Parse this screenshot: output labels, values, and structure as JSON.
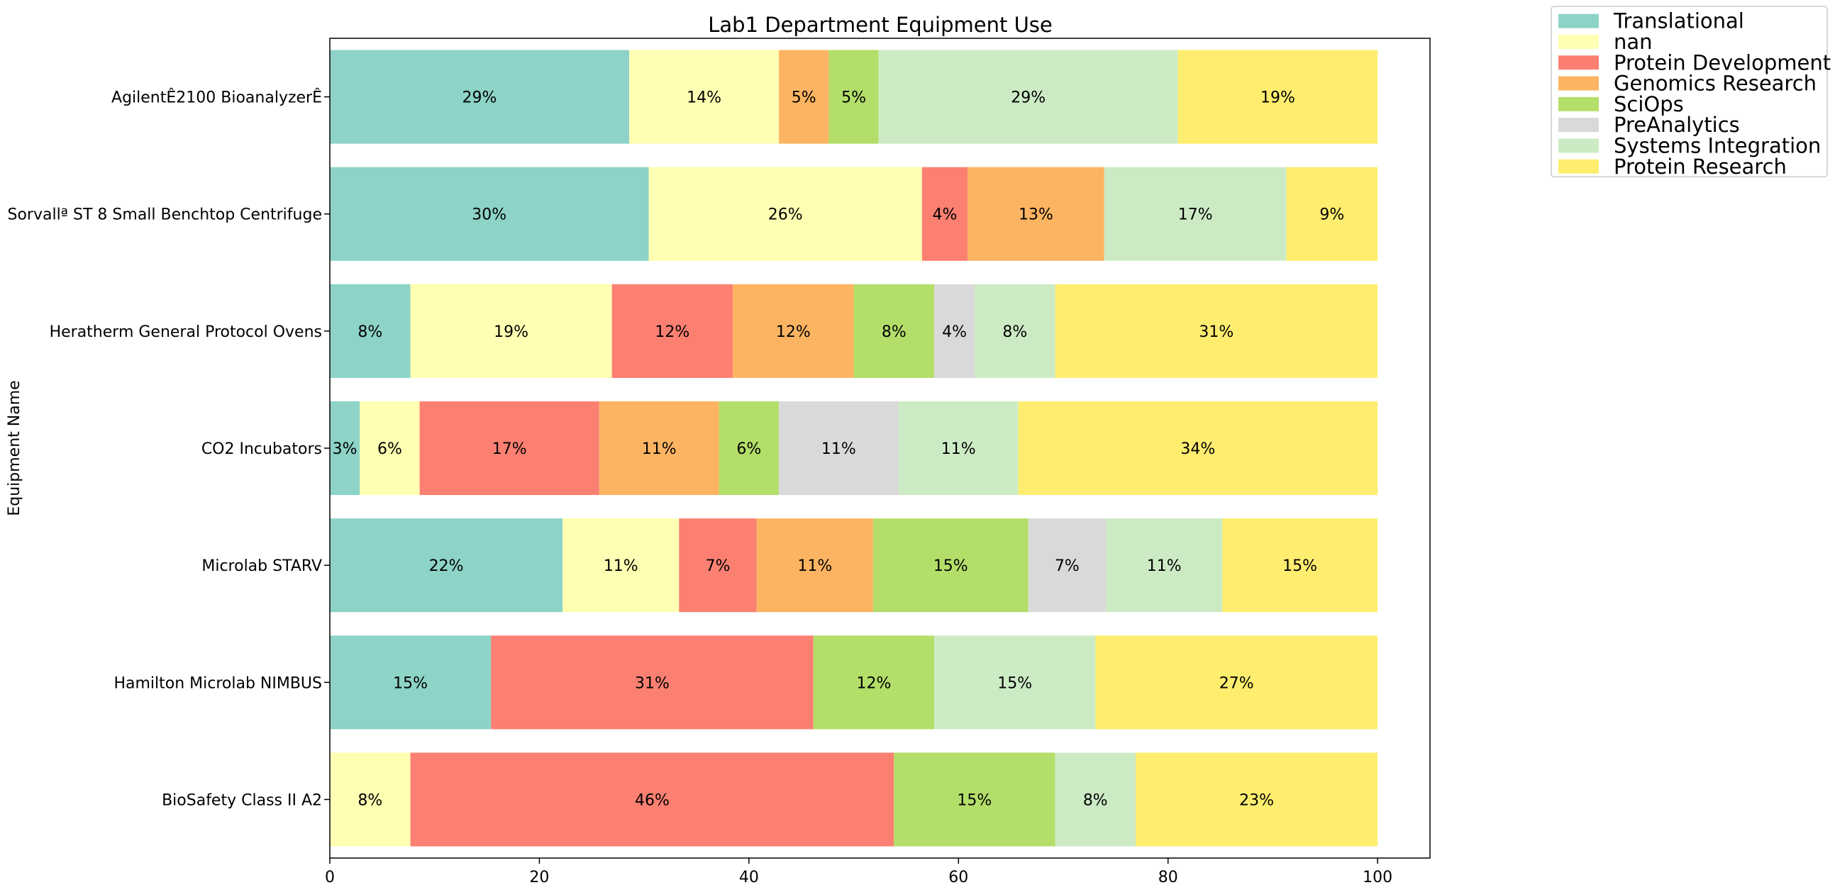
{
  "chart_data": {
    "type": "bar",
    "orientation": "horizontal",
    "stacked": true,
    "title": "Lab1 Department Equipment Use",
    "xlabel": "",
    "ylabel": "Equipment Name",
    "xlim": [
      0,
      105
    ],
    "xticks": [
      0,
      20,
      40,
      60,
      80,
      100
    ],
    "grid": false,
    "legend_position": "outside-top-right",
    "categories": [
      "AgilentÊ2100 BioanalyzerÊ",
      "Sorvallª ST 8 Small Benchtop Centrifuge",
      "Heratherm General Protocol Ovens",
      "CO2 Incubators",
      "Microlab STARV",
      "Hamilton Microlab NIMBUS",
      "BioSafety Class II A2"
    ],
    "series": [
      {
        "name": "Translational",
        "color": "#8dd3c7",
        "values": [
          28.57,
          30.43,
          7.69,
          2.86,
          22.22,
          15.38,
          0
        ]
      },
      {
        "name": "nan",
        "color": "#ffffb3",
        "values": [
          14.29,
          26.09,
          19.23,
          5.71,
          11.11,
          0,
          7.69
        ]
      },
      {
        "name": "Protein Development",
        "color": "#fb8072",
        "values": [
          0,
          4.35,
          11.54,
          17.14,
          7.41,
          30.77,
          46.15
        ]
      },
      {
        "name": "Genomics Research",
        "color": "#fdb462",
        "values": [
          4.76,
          13.04,
          11.54,
          11.43,
          11.11,
          0,
          0
        ]
      },
      {
        "name": "SciOps",
        "color": "#b3de69",
        "values": [
          4.76,
          0,
          7.69,
          5.71,
          14.81,
          11.54,
          15.38
        ]
      },
      {
        "name": "PreAnalytics",
        "color": "#d9d9d9",
        "values": [
          0,
          0,
          3.85,
          11.43,
          7.41,
          0,
          0
        ]
      },
      {
        "name": "Systems Integration",
        "color": "#ccebc5",
        "values": [
          28.57,
          17.39,
          7.69,
          11.43,
          11.11,
          15.38,
          7.69
        ]
      },
      {
        "name": "Protein Research",
        "color": "#ffed6f",
        "values": [
          19.05,
          8.7,
          30.77,
          34.29,
          14.81,
          26.92,
          23.08
        ]
      }
    ],
    "data_label_format": "{v}%"
  }
}
